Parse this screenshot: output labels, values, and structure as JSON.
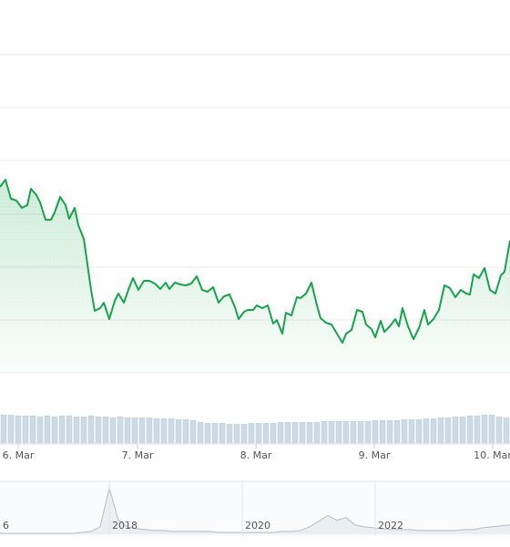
{
  "chart_data": {
    "type": "line",
    "x": [
      0,
      6,
      12,
      18,
      24,
      30,
      34,
      40,
      44,
      50,
      56,
      60,
      66,
      72,
      76,
      82,
      86,
      92,
      96,
      100,
      104,
      110,
      114,
      120,
      126,
      130,
      136,
      142,
      146,
      152,
      158,
      164,
      170,
      176,
      182,
      186,
      192,
      198,
      204,
      210,
      216,
      222,
      228,
      234,
      240,
      246,
      252,
      258,
      262,
      268,
      272,
      278,
      282,
      288,
      294,
      300,
      304,
      310,
      314,
      320,
      326,
      330,
      336,
      342,
      348,
      352,
      358,
      364,
      370,
      376,
      380,
      386,
      392,
      398,
      402,
      408,
      412,
      418,
      422,
      428,
      434,
      438,
      442,
      448,
      454,
      460,
      466,
      470,
      476,
      482,
      488,
      494,
      500,
      506,
      512,
      516,
      520,
      526,
      532,
      538,
      544,
      550,
      554,
      560
    ],
    "xlim": [
      0,
      560
    ],
    "xticks": [
      {
        "value": 20,
        "label": "6. Mar"
      },
      {
        "value": 151,
        "label": "7. Mar"
      },
      {
        "value": 281,
        "label": "8. Mar"
      },
      {
        "value": 411,
        "label": "9. Mar"
      },
      {
        "value": 541,
        "label": "10. Mar"
      }
    ],
    "ylim": [
      0,
      409
    ],
    "yticks": [
      0,
      58,
      116,
      174,
      233,
      291,
      349
    ],
    "grid": true,
    "series": [
      {
        "color": "#16a34a",
        "values": [
          204,
          212,
          191,
          189,
          181,
          184,
          202,
          195,
          187,
          168,
          168,
          176,
          193,
          184,
          169,
          181,
          162,
          147,
          119,
          91,
          68,
          71,
          77,
          59,
          79,
          87,
          77,
          94,
          104,
          91,
          101,
          101,
          98,
          92,
          99,
          92,
          99,
          97,
          96,
          98,
          106,
          91,
          89,
          94,
          77,
          84,
          86,
          72,
          59,
          67,
          69,
          69,
          74,
          71,
          74,
          54,
          58,
          43,
          66,
          63,
          83,
          82,
          87,
          99,
          74,
          60,
          55,
          53,
          43,
          33,
          43,
          47,
          69,
          67,
          53,
          48,
          39,
          57,
          45,
          51,
          59,
          51,
          71,
          51,
          37,
          49,
          69,
          53,
          59,
          69,
          96,
          93,
          83,
          91,
          87,
          86,
          108,
          104,
          115,
          91,
          87,
          107,
          111,
          145
        ]
      }
    ],
    "volume": {
      "color": "#cddbe6",
      "ylim": [
        0,
        32
      ],
      "values": [
        30,
        30,
        29,
        29,
        29,
        28,
        29,
        28,
        29,
        29,
        28,
        28,
        29,
        28,
        28,
        27,
        28,
        27,
        27,
        27,
        27,
        26,
        26,
        26,
        25,
        25,
        24,
        22,
        21,
        21,
        21,
        20,
        20,
        20,
        21,
        21,
        21,
        21,
        22,
        22,
        22,
        22,
        22,
        22,
        23,
        23,
        23,
        23,
        23,
        23,
        23,
        24,
        24,
        24,
        24,
        25,
        25,
        25,
        26,
        26,
        27,
        27,
        28,
        28,
        29,
        29,
        30,
        30,
        28,
        27
      ]
    },
    "navigator": {
      "color": "#b8bec4",
      "ylim": [
        0,
        55
      ],
      "values": [
        1,
        1,
        1,
        1,
        1,
        1,
        1,
        1,
        1,
        2,
        3,
        8,
        50,
        15,
        8,
        6,
        5,
        4,
        4,
        3,
        3,
        3,
        3,
        3,
        2,
        2,
        2,
        2,
        2,
        2,
        2,
        3,
        3,
        4,
        8,
        14,
        20,
        15,
        18,
        10,
        8,
        7,
        6,
        5,
        5,
        5,
        4,
        4,
        4,
        4,
        4,
        5,
        5,
        7,
        8,
        9,
        10
      ],
      "labels": [
        {
          "value": 0,
          "label": "6"
        },
        {
          "value": 120,
          "label": "2018"
        },
        {
          "value": 266,
          "label": "2020"
        },
        {
          "value": 412,
          "label": "2022"
        }
      ]
    }
  }
}
